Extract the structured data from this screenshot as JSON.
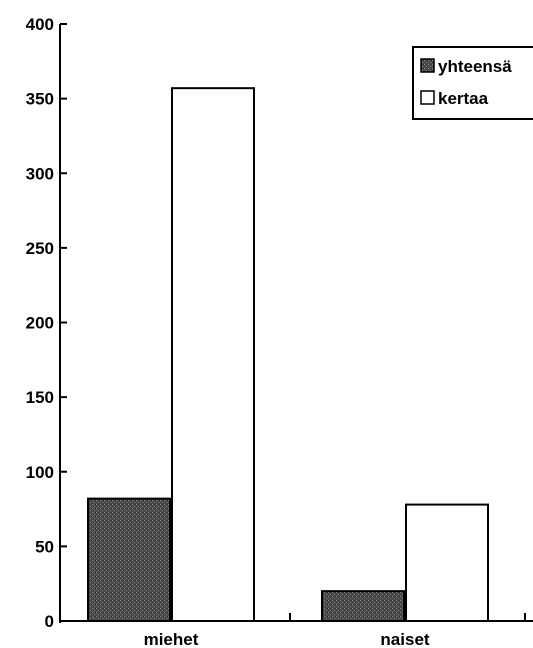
{
  "chart_data": {
    "type": "bar",
    "title": "",
    "xlabel": "",
    "ylabel": "",
    "categories": [
      "miehet",
      "naiset"
    ],
    "series": [
      {
        "name": "yhteensä",
        "values": [
          82,
          20
        ],
        "color": "#555555"
      },
      {
        "name": "kertaa",
        "values": [
          357,
          78
        ],
        "color": "#ffffff"
      }
    ],
    "ylim": [
      0,
      400
    ],
    "yticks": [
      0,
      50,
      100,
      150,
      200,
      250,
      300,
      350,
      400
    ],
    "yticklabels": [
      "0",
      "50",
      "100",
      "150",
      "200",
      "250",
      "300",
      "350",
      "400"
    ],
    "grid": false,
    "legend": "top-right"
  }
}
